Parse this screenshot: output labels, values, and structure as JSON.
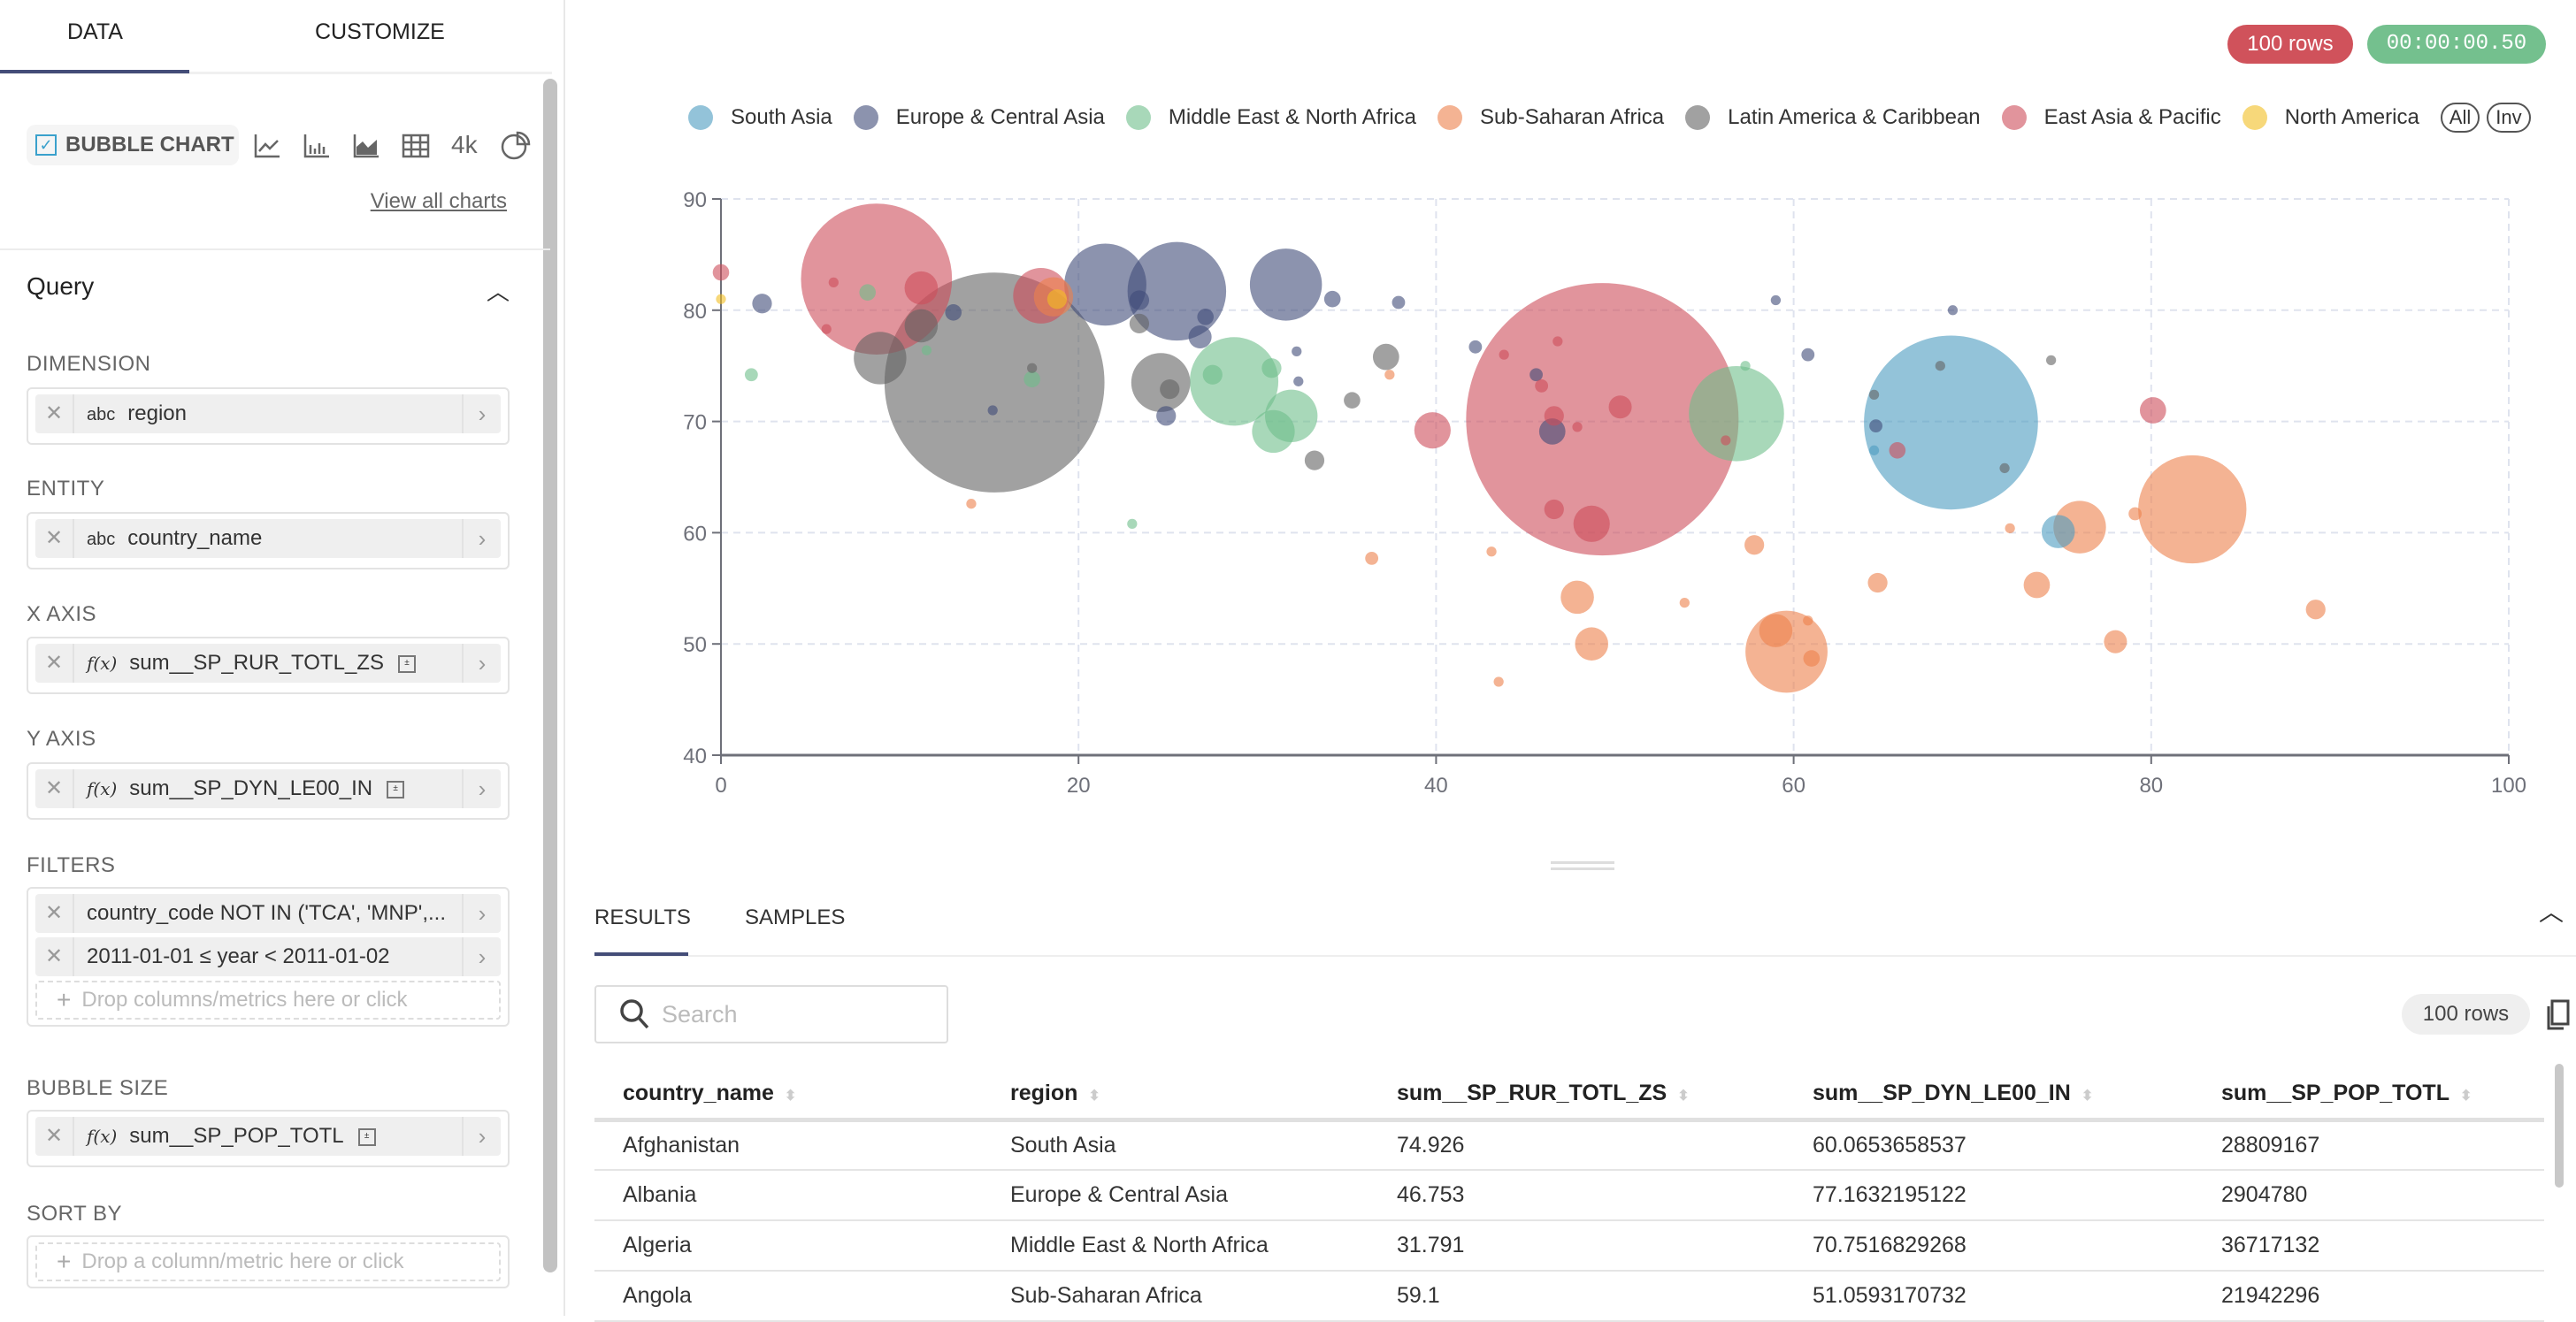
{
  "left_panel": {
    "tabs": [
      "DATA",
      "CUSTOMIZE"
    ],
    "viz_selected": "BUBBLE CHART",
    "viz_icons": [
      "line-chart-icon",
      "bar-chart-icon",
      "area-chart-icon",
      "table-icon",
      "big-number-icon",
      "pie-chart-icon"
    ],
    "big_number_label": "4k",
    "view_all_charts": "View all charts",
    "section_title": "Query",
    "dimension": {
      "label": "DIMENSION",
      "type": "abc",
      "value": "region"
    },
    "entity": {
      "label": "ENTITY",
      "type": "abc",
      "value": "country_name"
    },
    "x_axis": {
      "label": "X AXIS",
      "type": "f(x)",
      "value": "sum__SP_RUR_TOTL_ZS"
    },
    "y_axis": {
      "label": "Y AXIS",
      "type": "f(x)",
      "value": "sum__SP_DYN_LE00_IN"
    },
    "filters": {
      "label": "FILTERS",
      "items": [
        "country_code NOT IN ('TCA', 'MNP',...",
        "2011-01-01 ≤ year < 2011-01-02"
      ],
      "drop_placeholder": "Drop columns/metrics here or click"
    },
    "bubble_size": {
      "label": "BUBBLE SIZE",
      "type": "f(x)",
      "value": "sum__SP_POP_TOTL"
    },
    "sort_by": {
      "label": "SORT BY",
      "drop_placeholder": "Drop a column/metric here or click"
    }
  },
  "status": {
    "rows": "100 rows",
    "timer": "00:00:00.50",
    "rows_color": "#d0525b",
    "timer_color": "#74c08e"
  },
  "legend": {
    "all_label": "All",
    "inv_label": "Inv"
  },
  "chart_data": {
    "type": "scatter",
    "subtype": "bubble",
    "xlim": [
      0,
      100
    ],
    "ylim": [
      40,
      90
    ],
    "x_ticks": [
      0,
      20,
      40,
      60,
      80,
      100
    ],
    "y_ticks": [
      40,
      50,
      60,
      70,
      80,
      90
    ],
    "grid": true,
    "legend_position": "top",
    "size_metric_units": "millions (approx.)",
    "series": [
      {
        "name": "South Asia",
        "color": "#4b9bc0",
        "points": [
          [
            68.8,
            69.9,
            548
          ],
          [
            74.8,
            60.1,
            20
          ],
          [
            64.5,
            67.4,
            1.8
          ]
        ]
      },
      {
        "name": "Europe & Central Asia",
        "color": "#3f4b78",
        "points": [
          [
            21.5,
            82.3,
            122
          ],
          [
            25.5,
            81.7,
            176
          ],
          [
            31.6,
            82.3,
            94
          ],
          [
            2.3,
            80.6,
            7
          ],
          [
            13.0,
            79.8,
            4.9
          ],
          [
            23.4,
            80.9,
            7
          ],
          [
            27.1,
            79.4,
            4.9
          ],
          [
            26.8,
            77.6,
            9.6
          ],
          [
            24.9,
            70.5,
            7
          ],
          [
            34.2,
            81.0,
            4.9
          ],
          [
            37.9,
            80.7,
            3.1
          ],
          [
            32.2,
            76.3,
            1.8
          ],
          [
            32.3,
            73.6,
            1.8
          ],
          [
            46.5,
            69.1,
            12.5
          ],
          [
            59.0,
            80.9,
            1.8
          ],
          [
            60.8,
            76.0,
            3.1
          ],
          [
            64.6,
            69.6,
            3.1
          ],
          [
            68.9,
            80.0,
            1.8
          ],
          [
            15.2,
            71.0,
            1.8
          ],
          [
            42.2,
            76.7,
            3.1
          ],
          [
            45.6,
            74.2,
            3.1
          ]
        ]
      },
      {
        "name": "Middle East & North Africa",
        "color": "#6ebe8a",
        "points": [
          [
            28.7,
            73.6,
            142
          ],
          [
            31.9,
            70.5,
            50
          ],
          [
            30.9,
            69.1,
            33
          ],
          [
            56.8,
            70.7,
            164
          ],
          [
            1.7,
            74.2,
            3.1
          ],
          [
            8.2,
            81.6,
            4.9
          ],
          [
            11.5,
            76.4,
            1.8
          ],
          [
            17.4,
            73.8,
            4.9
          ],
          [
            23.0,
            60.8,
            1.8
          ],
          [
            27.5,
            74.2,
            7
          ],
          [
            30.8,
            74.8,
            7
          ],
          [
            57.3,
            75.0,
            1.8
          ]
        ]
      },
      {
        "name": "Sub-Saharan Africa",
        "color": "#ed804b",
        "points": [
          [
            82.3,
            62.1,
            212
          ],
          [
            59.6,
            49.3,
            122
          ],
          [
            76.0,
            60.5,
            50
          ],
          [
            47.9,
            54.2,
            20
          ],
          [
            48.7,
            50.0,
            20
          ],
          [
            59.0,
            51.2,
            20
          ],
          [
            73.6,
            55.3,
            12.5
          ],
          [
            64.7,
            55.5,
            7
          ],
          [
            78.0,
            50.2,
            9.6
          ],
          [
            89.2,
            53.1,
            7
          ],
          [
            57.8,
            58.9,
            7
          ],
          [
            36.4,
            57.7,
            3.1
          ],
          [
            43.1,
            58.3,
            1.8
          ],
          [
            43.5,
            46.6,
            1.8
          ],
          [
            53.9,
            53.7,
            1.8
          ],
          [
            61.0,
            48.7,
            4.9
          ],
          [
            72.1,
            60.4,
            1.8
          ],
          [
            79.1,
            61.7,
            3.1
          ],
          [
            60.8,
            52.1,
            1.8
          ],
          [
            37.4,
            74.2,
            1.8
          ],
          [
            14.0,
            62.6,
            1.8
          ],
          [
            18.6,
            81.2,
            28
          ]
        ]
      },
      {
        "name": "Latin America & Caribbean",
        "color": "#626262",
        "points": [
          [
            15.3,
            73.5,
            876
          ],
          [
            8.9,
            75.7,
            50
          ],
          [
            24.6,
            73.5,
            63
          ],
          [
            25.1,
            72.9,
            7
          ],
          [
            11.2,
            78.6,
            20
          ],
          [
            37.2,
            75.8,
            12.5
          ],
          [
            33.2,
            66.5,
            7
          ],
          [
            35.3,
            71.9,
            4.9
          ],
          [
            23.4,
            78.8,
            7
          ],
          [
            17.4,
            74.8,
            1.8
          ],
          [
            71.8,
            65.8,
            1.8
          ],
          [
            74.4,
            75.5,
            1.8
          ],
          [
            68.2,
            75.0,
            1.8
          ],
          [
            64.5,
            72.4,
            1.8
          ]
        ]
      },
      {
        "name": "East Asia & Pacific",
        "color": "#cd4d5a",
        "points": [
          [
            8.7,
            82.8,
            413
          ],
          [
            0,
            83.4,
            4.9
          ],
          [
            11.2,
            82.0,
            20
          ],
          [
            17.9,
            81.3,
            56
          ],
          [
            49.3,
            70.2,
            1344
          ],
          [
            39.8,
            69.2,
            24
          ],
          [
            48.7,
            60.8,
            24
          ],
          [
            80.1,
            71.0,
            12.5
          ],
          [
            65.8,
            67.4,
            4.9
          ],
          [
            46.6,
            70.5,
            7
          ],
          [
            6.3,
            82.5,
            1.8
          ],
          [
            5.9,
            78.3,
            1.8
          ],
          [
            43.8,
            76.0,
            1.8
          ],
          [
            46.8,
            77.2,
            1.8
          ],
          [
            45.9,
            73.2,
            3.1
          ],
          [
            50.3,
            71.3,
            9.6
          ],
          [
            47.9,
            69.5,
            1.8
          ],
          [
            46.6,
            62.1,
            7
          ],
          [
            56.2,
            68.3,
            1.8
          ]
        ]
      },
      {
        "name": "North America",
        "color": "#f2be21",
        "points": [
          [
            0,
            81.0,
            1.8
          ],
          [
            18.8,
            81.0,
            7
          ]
        ]
      }
    ]
  },
  "results": {
    "tabs": [
      "RESULTS",
      "SAMPLES"
    ],
    "search_placeholder": "Search",
    "row_count": "100 rows",
    "columns": [
      "country_name",
      "region",
      "sum__SP_RUR_TOTL_ZS",
      "sum__SP_DYN_LE00_IN",
      "sum__SP_POP_TOTL"
    ],
    "rows": [
      [
        "Afghanistan",
        "South Asia",
        "74.926",
        "60.0653658537",
        "28809167"
      ],
      [
        "Albania",
        "Europe & Central Asia",
        "46.753",
        "77.1632195122",
        "2904780"
      ],
      [
        "Algeria",
        "Middle East & North Africa",
        "31.791",
        "70.7516829268",
        "36717132"
      ],
      [
        "Angola",
        "Sub-Saharan Africa",
        "59.1",
        "51.0593170732",
        "21942296"
      ]
    ]
  }
}
